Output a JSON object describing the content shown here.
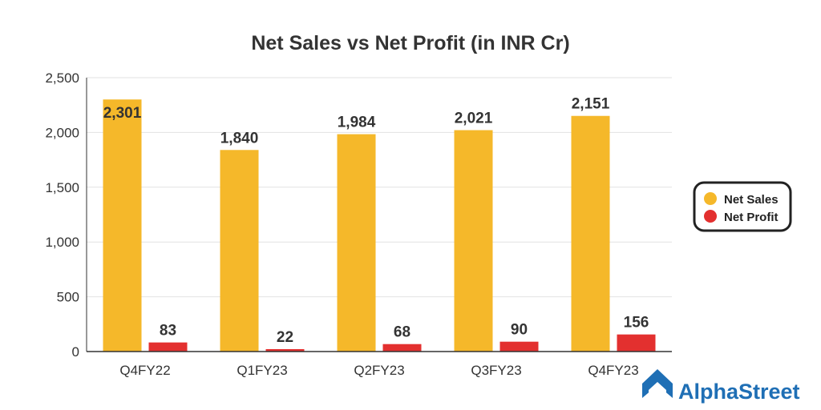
{
  "chart_data": {
    "type": "bar",
    "title": "Net Sales vs Net Profit (in INR Cr)",
    "xlabel": "",
    "ylabel": "",
    "categories": [
      "Q4FY22",
      "Q1FY23",
      "Q2FY23",
      "Q3FY23",
      "Q4FY23"
    ],
    "series": [
      {
        "name": "Net Sales",
        "color": "#f5b82a",
        "values": [
          2301,
          1840,
          1984,
          2021,
          2151
        ],
        "labels": [
          "2,301",
          "1,840",
          "1,984",
          "2,021",
          "2,151"
        ]
      },
      {
        "name": "Net Profit",
        "color": "#e3302f",
        "values": [
          83,
          22,
          68,
          90,
          156
        ],
        "labels": [
          "83",
          "22",
          "68",
          "90",
          "156"
        ]
      }
    ],
    "ylim": [
      0,
      2500
    ],
    "yticks": [
      0,
      500,
      1000,
      1500,
      2000,
      2500
    ],
    "ytick_labels": [
      "0",
      "500",
      "1,000",
      "1,500",
      "2,000",
      "2,500"
    ],
    "grid": true,
    "legend_position": "right"
  },
  "brand": {
    "name": "AlphaStreet",
    "color": "#1f6fb5",
    "icon": "alphastreet-logo-icon"
  }
}
